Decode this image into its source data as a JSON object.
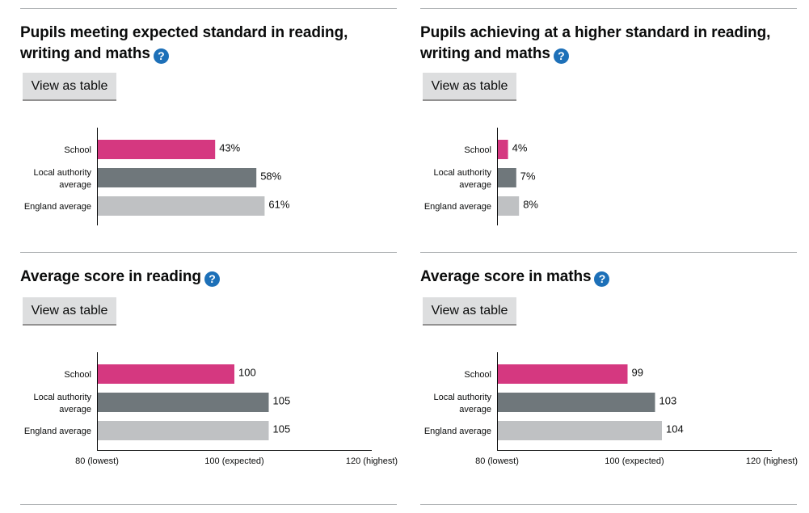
{
  "panels": [
    {
      "title": "Pupils meeting expected standard in reading, writing and maths",
      "button_label": "View as table",
      "help_label": "?"
    },
    {
      "title": "Pupils achieving at a higher standard in reading, writing and maths",
      "button_label": "View as table",
      "help_label": "?"
    },
    {
      "title": "Average score in reading",
      "button_label": "View as table",
      "help_label": "?"
    },
    {
      "title": "Average score in maths",
      "button_label": "View as table",
      "help_label": "?"
    }
  ],
  "chart_data": [
    {
      "type": "bar",
      "orientation": "horizontal",
      "title": "Pupils meeting expected standard in reading, writing and maths",
      "categories": [
        "School",
        "Local authority average",
        "England average"
      ],
      "values": [
        43,
        58,
        61
      ],
      "value_labels": [
        "43%",
        "58%",
        "61%"
      ],
      "colors": [
        "#d53880",
        "#6f777b",
        "#bfc1c3"
      ],
      "xlim": [
        0,
        100
      ],
      "ticks": []
    },
    {
      "type": "bar",
      "orientation": "horizontal",
      "title": "Pupils achieving at a higher standard in reading, writing and maths",
      "categories": [
        "School",
        "Local authority average",
        "England average"
      ],
      "values": [
        4,
        7,
        8
      ],
      "value_labels": [
        "4%",
        "7%",
        "8%"
      ],
      "colors": [
        "#d53880",
        "#6f777b",
        "#bfc1c3"
      ],
      "xlim": [
        0,
        100
      ],
      "ticks": []
    },
    {
      "type": "bar",
      "orientation": "horizontal",
      "title": "Average score in reading",
      "categories": [
        "School",
        "Local authority average",
        "England average"
      ],
      "values": [
        100,
        105,
        105
      ],
      "value_labels": [
        "100",
        "105",
        "105"
      ],
      "colors": [
        "#d53880",
        "#6f777b",
        "#bfc1c3"
      ],
      "xlim": [
        80,
        120
      ],
      "ticks": [
        {
          "value": 80,
          "label": "80 (lowest)"
        },
        {
          "value": 100,
          "label": "100 (expected)"
        },
        {
          "value": 120,
          "label": "120 (highest)"
        }
      ]
    },
    {
      "type": "bar",
      "orientation": "horizontal",
      "title": "Average score in maths",
      "categories": [
        "School",
        "Local authority average",
        "England average"
      ],
      "values": [
        99,
        103,
        104
      ],
      "value_labels": [
        "99",
        "103",
        "104"
      ],
      "colors": [
        "#d53880",
        "#6f777b",
        "#bfc1c3"
      ],
      "xlim": [
        80,
        120
      ],
      "ticks": [
        {
          "value": 80,
          "label": "80 (lowest)"
        },
        {
          "value": 100,
          "label": "100 (expected)"
        },
        {
          "value": 120,
          "label": "120 (highest)"
        }
      ]
    }
  ]
}
